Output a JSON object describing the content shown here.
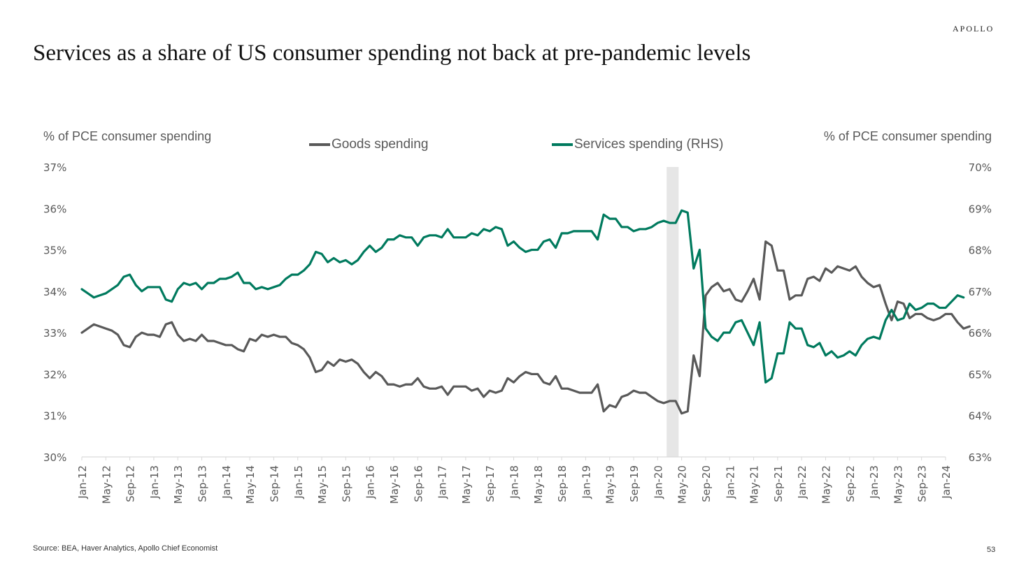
{
  "brand": "APOLLO",
  "title": "Services as a share of US consumer spending not back at pre-pandemic levels",
  "footer": {
    "source": "Source: BEA, Haver Analytics, Apollo Chief Economist",
    "page_number": "53"
  },
  "colors": {
    "goods": "#595959",
    "services": "#007A5E",
    "recession_shade": "#E6E6E6",
    "axis": "#D9D9D9",
    "text": "#595959"
  },
  "chart_data": {
    "type": "line",
    "title": "Services as a share of US consumer spending not back at pre-pandemic levels",
    "ylabel_left": "% of PCE consumer spending",
    "ylabel_right": "% of PCE consumer spending",
    "ylim_left": [
      30,
      37
    ],
    "ylim_right": [
      63,
      70
    ],
    "yticks_left": [
      "30%",
      "31%",
      "32%",
      "33%",
      "34%",
      "35%",
      "36%",
      "37%"
    ],
    "yticks_right": [
      "63%",
      "64%",
      "65%",
      "66%",
      "67%",
      "68%",
      "69%",
      "70%"
    ],
    "x_start": "Jan-12",
    "x_end": "Jan-24",
    "xticks": [
      "Jan-12",
      "May-12",
      "Sep-12",
      "Jan-13",
      "May-13",
      "Sep-13",
      "Jan-14",
      "May-14",
      "Sep-14",
      "Jan-15",
      "May-15",
      "Sep-15",
      "Jan-16",
      "May-16",
      "Sep-16",
      "Jan-17",
      "May-17",
      "Sep-17",
      "Jan-18",
      "May-18",
      "Sep-18",
      "Jan-19",
      "May-19",
      "Sep-19",
      "Jan-20",
      "May-20",
      "Sep-20",
      "Jan-21",
      "May-21",
      "Sep-21",
      "Jan-22",
      "May-22",
      "Sep-22",
      "Jan-23",
      "May-23",
      "Sep-23",
      "Jan-24"
    ],
    "grid": false,
    "legend": "top-center",
    "shaded_period": {
      "start": "Mar-20",
      "end": "Apr-20",
      "label": "recession"
    },
    "series": [
      {
        "name": "Goods spending",
        "axis": "left",
        "color": "#595959",
        "values": [
          33.0,
          33.1,
          33.2,
          33.15,
          33.1,
          33.05,
          32.95,
          32.7,
          32.65,
          32.9,
          33.0,
          32.95,
          32.95,
          32.9,
          33.2,
          33.25,
          32.95,
          32.8,
          32.85,
          32.8,
          32.95,
          32.8,
          32.8,
          32.75,
          32.7,
          32.7,
          32.6,
          32.55,
          32.85,
          32.8,
          32.95,
          32.9,
          32.95,
          32.9,
          32.9,
          32.75,
          32.7,
          32.6,
          32.4,
          32.05,
          32.1,
          32.3,
          32.2,
          32.35,
          32.3,
          32.35,
          32.25,
          32.05,
          31.9,
          32.05,
          31.95,
          31.75,
          31.75,
          31.7,
          31.75,
          31.75,
          31.9,
          31.7,
          31.65,
          31.65,
          31.7,
          31.5,
          31.7,
          31.7,
          31.7,
          31.6,
          31.65,
          31.45,
          31.6,
          31.55,
          31.6,
          31.9,
          31.8,
          31.95,
          32.05,
          32.0,
          32.0,
          31.8,
          31.75,
          31.95,
          31.65,
          31.65,
          31.6,
          31.55,
          31.55,
          31.55,
          31.75,
          31.1,
          31.25,
          31.2,
          31.45,
          31.5,
          31.6,
          31.55,
          31.55,
          31.45,
          31.35,
          31.3,
          31.35,
          31.35,
          31.05,
          31.1,
          32.45,
          31.95,
          33.9,
          34.1,
          34.2,
          34.0,
          34.05,
          33.8,
          33.75,
          34.0,
          34.3,
          33.8,
          35.2,
          35.1,
          34.5,
          34.5,
          33.8,
          33.9,
          33.9,
          34.3,
          34.35,
          34.25,
          34.55,
          34.45,
          34.6,
          34.55,
          34.5,
          34.6,
          34.35,
          34.2,
          34.1,
          34.15,
          33.7,
          33.3,
          33.75,
          33.7,
          33.35,
          33.45,
          33.45,
          33.35,
          33.3,
          33.35,
          33.45,
          33.45,
          33.25,
          33.1,
          33.15
        ]
      },
      {
        "name": "Services spending (RHS)",
        "axis": "right",
        "color": "#007A5E",
        "values": [
          67.05,
          66.95,
          66.85,
          66.9,
          66.95,
          67.05,
          67.15,
          67.35,
          67.4,
          67.15,
          67.0,
          67.1,
          67.1,
          67.1,
          66.8,
          66.75,
          67.05,
          67.2,
          67.15,
          67.2,
          67.05,
          67.2,
          67.2,
          67.3,
          67.3,
          67.35,
          67.45,
          67.2,
          67.2,
          67.05,
          67.1,
          67.05,
          67.1,
          67.15,
          67.3,
          67.4,
          67.4,
          67.5,
          67.65,
          67.95,
          67.9,
          67.7,
          67.8,
          67.7,
          67.75,
          67.65,
          67.75,
          67.95,
          68.1,
          67.95,
          68.05,
          68.25,
          68.25,
          68.35,
          68.3,
          68.3,
          68.1,
          68.3,
          68.35,
          68.35,
          68.3,
          68.5,
          68.3,
          68.3,
          68.3,
          68.4,
          68.35,
          68.5,
          68.45,
          68.55,
          68.5,
          68.1,
          68.2,
          68.05,
          67.95,
          68.0,
          68.0,
          68.2,
          68.25,
          68.05,
          68.4,
          68.4,
          68.45,
          68.45,
          68.45,
          68.45,
          68.25,
          68.85,
          68.75,
          68.75,
          68.55,
          68.55,
          68.45,
          68.5,
          68.5,
          68.55,
          68.65,
          68.7,
          68.65,
          68.65,
          68.95,
          68.9,
          67.55,
          68.0,
          66.1,
          65.9,
          65.8,
          66.0,
          66.0,
          66.25,
          66.3,
          66.0,
          65.7,
          66.25,
          64.8,
          64.9,
          65.5,
          65.5,
          66.25,
          66.1,
          66.1,
          65.7,
          65.65,
          65.75,
          65.45,
          65.55,
          65.4,
          65.45,
          65.55,
          65.45,
          65.7,
          65.85,
          65.9,
          65.85,
          66.3,
          66.55,
          66.3,
          66.35,
          66.7,
          66.55,
          66.6,
          66.7,
          66.7,
          66.6,
          66.6,
          66.75,
          66.9,
          66.85
        ]
      }
    ]
  }
}
